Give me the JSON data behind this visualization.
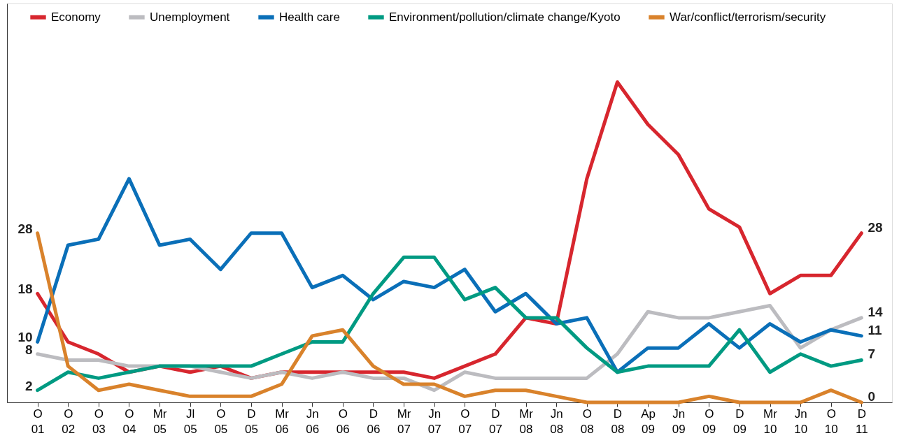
{
  "chart_data": {
    "type": "line",
    "categories": [
      "O\n01",
      "O\n02",
      "O\n03",
      "O\n04",
      "Mr\n05",
      "Jl\n05",
      "O\n05",
      "D\n05",
      "Mr\n06",
      "Jn\n06",
      "O\n06",
      "D\n06",
      "Mr\n07",
      "Jn\n07",
      "O\n07",
      "D\n07",
      "Mr\n08",
      "Jn\n08",
      "O\n08",
      "D\n08",
      "Ap\n09",
      "Jn\n09",
      "O\n09",
      "D\n09",
      "Mr\n10",
      "Jn\n10",
      "O\n10",
      "D\n11"
    ],
    "series": [
      {
        "name": "Economy",
        "color": "#d7262e",
        "values": [
          18,
          10,
          8,
          5,
          6,
          5,
          6,
          4,
          5,
          5,
          5,
          5,
          5,
          4,
          6,
          8,
          14,
          13,
          37,
          53,
          46,
          41,
          32,
          29,
          18,
          21,
          21,
          28
        ],
        "value_labels": [
          "18",
          null,
          null,
          null,
          null,
          null,
          null,
          null,
          null,
          null,
          null,
          null,
          null,
          null,
          null,
          null,
          null,
          null,
          null,
          null,
          null,
          null,
          null,
          null,
          null,
          null,
          null,
          "28"
        ]
      },
      {
        "name": "Unemployment",
        "color": "#bcbcc0",
        "values": [
          8,
          7,
          7,
          6,
          6,
          6,
          5,
          4,
          5,
          4,
          5,
          4,
          4,
          2,
          5,
          4,
          4,
          4,
          4,
          8,
          15,
          14,
          14,
          15,
          16,
          9,
          12,
          14
        ],
        "value_labels": [
          "8",
          null,
          null,
          null,
          null,
          null,
          null,
          null,
          null,
          null,
          null,
          null,
          null,
          null,
          null,
          null,
          null,
          null,
          null,
          null,
          null,
          null,
          null,
          null,
          null,
          null,
          null,
          "14"
        ]
      },
      {
        "name": "Health care",
        "color": "#0a6fb8",
        "values": [
          10,
          26,
          27,
          37,
          26,
          27,
          22,
          28,
          28,
          19,
          21,
          17,
          20,
          19,
          22,
          15,
          18,
          13,
          14,
          5,
          9,
          9,
          13,
          9,
          13,
          10,
          12,
          11
        ],
        "value_labels": [
          "10",
          null,
          null,
          null,
          null,
          null,
          null,
          null,
          null,
          null,
          null,
          null,
          null,
          null,
          null,
          null,
          null,
          null,
          null,
          null,
          null,
          null,
          null,
          null,
          null,
          null,
          null,
          "11"
        ]
      },
      {
        "name": "Environment/pollution/climate change/Kyoto",
        "color": "#009a82",
        "values": [
          2,
          5,
          4,
          5,
          6,
          6,
          6,
          6,
          8,
          10,
          10,
          18,
          24,
          24,
          17,
          19,
          14,
          14,
          9,
          5,
          6,
          6,
          6,
          12,
          5,
          8,
          6,
          7
        ],
        "value_labels": [
          "2",
          null,
          null,
          null,
          null,
          null,
          null,
          null,
          null,
          null,
          null,
          null,
          null,
          null,
          null,
          null,
          null,
          null,
          null,
          null,
          null,
          null,
          null,
          null,
          null,
          null,
          null,
          "7"
        ]
      },
      {
        "name": "War/conflict/terrorism/security",
        "color": "#d9822b",
        "values": [
          28,
          6,
          2,
          3,
          2,
          1,
          1,
          1,
          3,
          11,
          12,
          6,
          3,
          3,
          1,
          2,
          2,
          1,
          0,
          0,
          0,
          0,
          1,
          0,
          0,
          0,
          2,
          0
        ],
        "value_labels": [
          "28",
          null,
          null,
          null,
          null,
          null,
          null,
          null,
          null,
          null,
          null,
          null,
          null,
          null,
          null,
          null,
          null,
          null,
          null,
          null,
          null,
          null,
          null,
          null,
          null,
          null,
          null,
          "0"
        ]
      }
    ],
    "ylim": [
      0,
      66
    ],
    "tick_labels": "x",
    "grid": false,
    "legend": "top",
    "marker": "none",
    "line_style": "solid"
  }
}
